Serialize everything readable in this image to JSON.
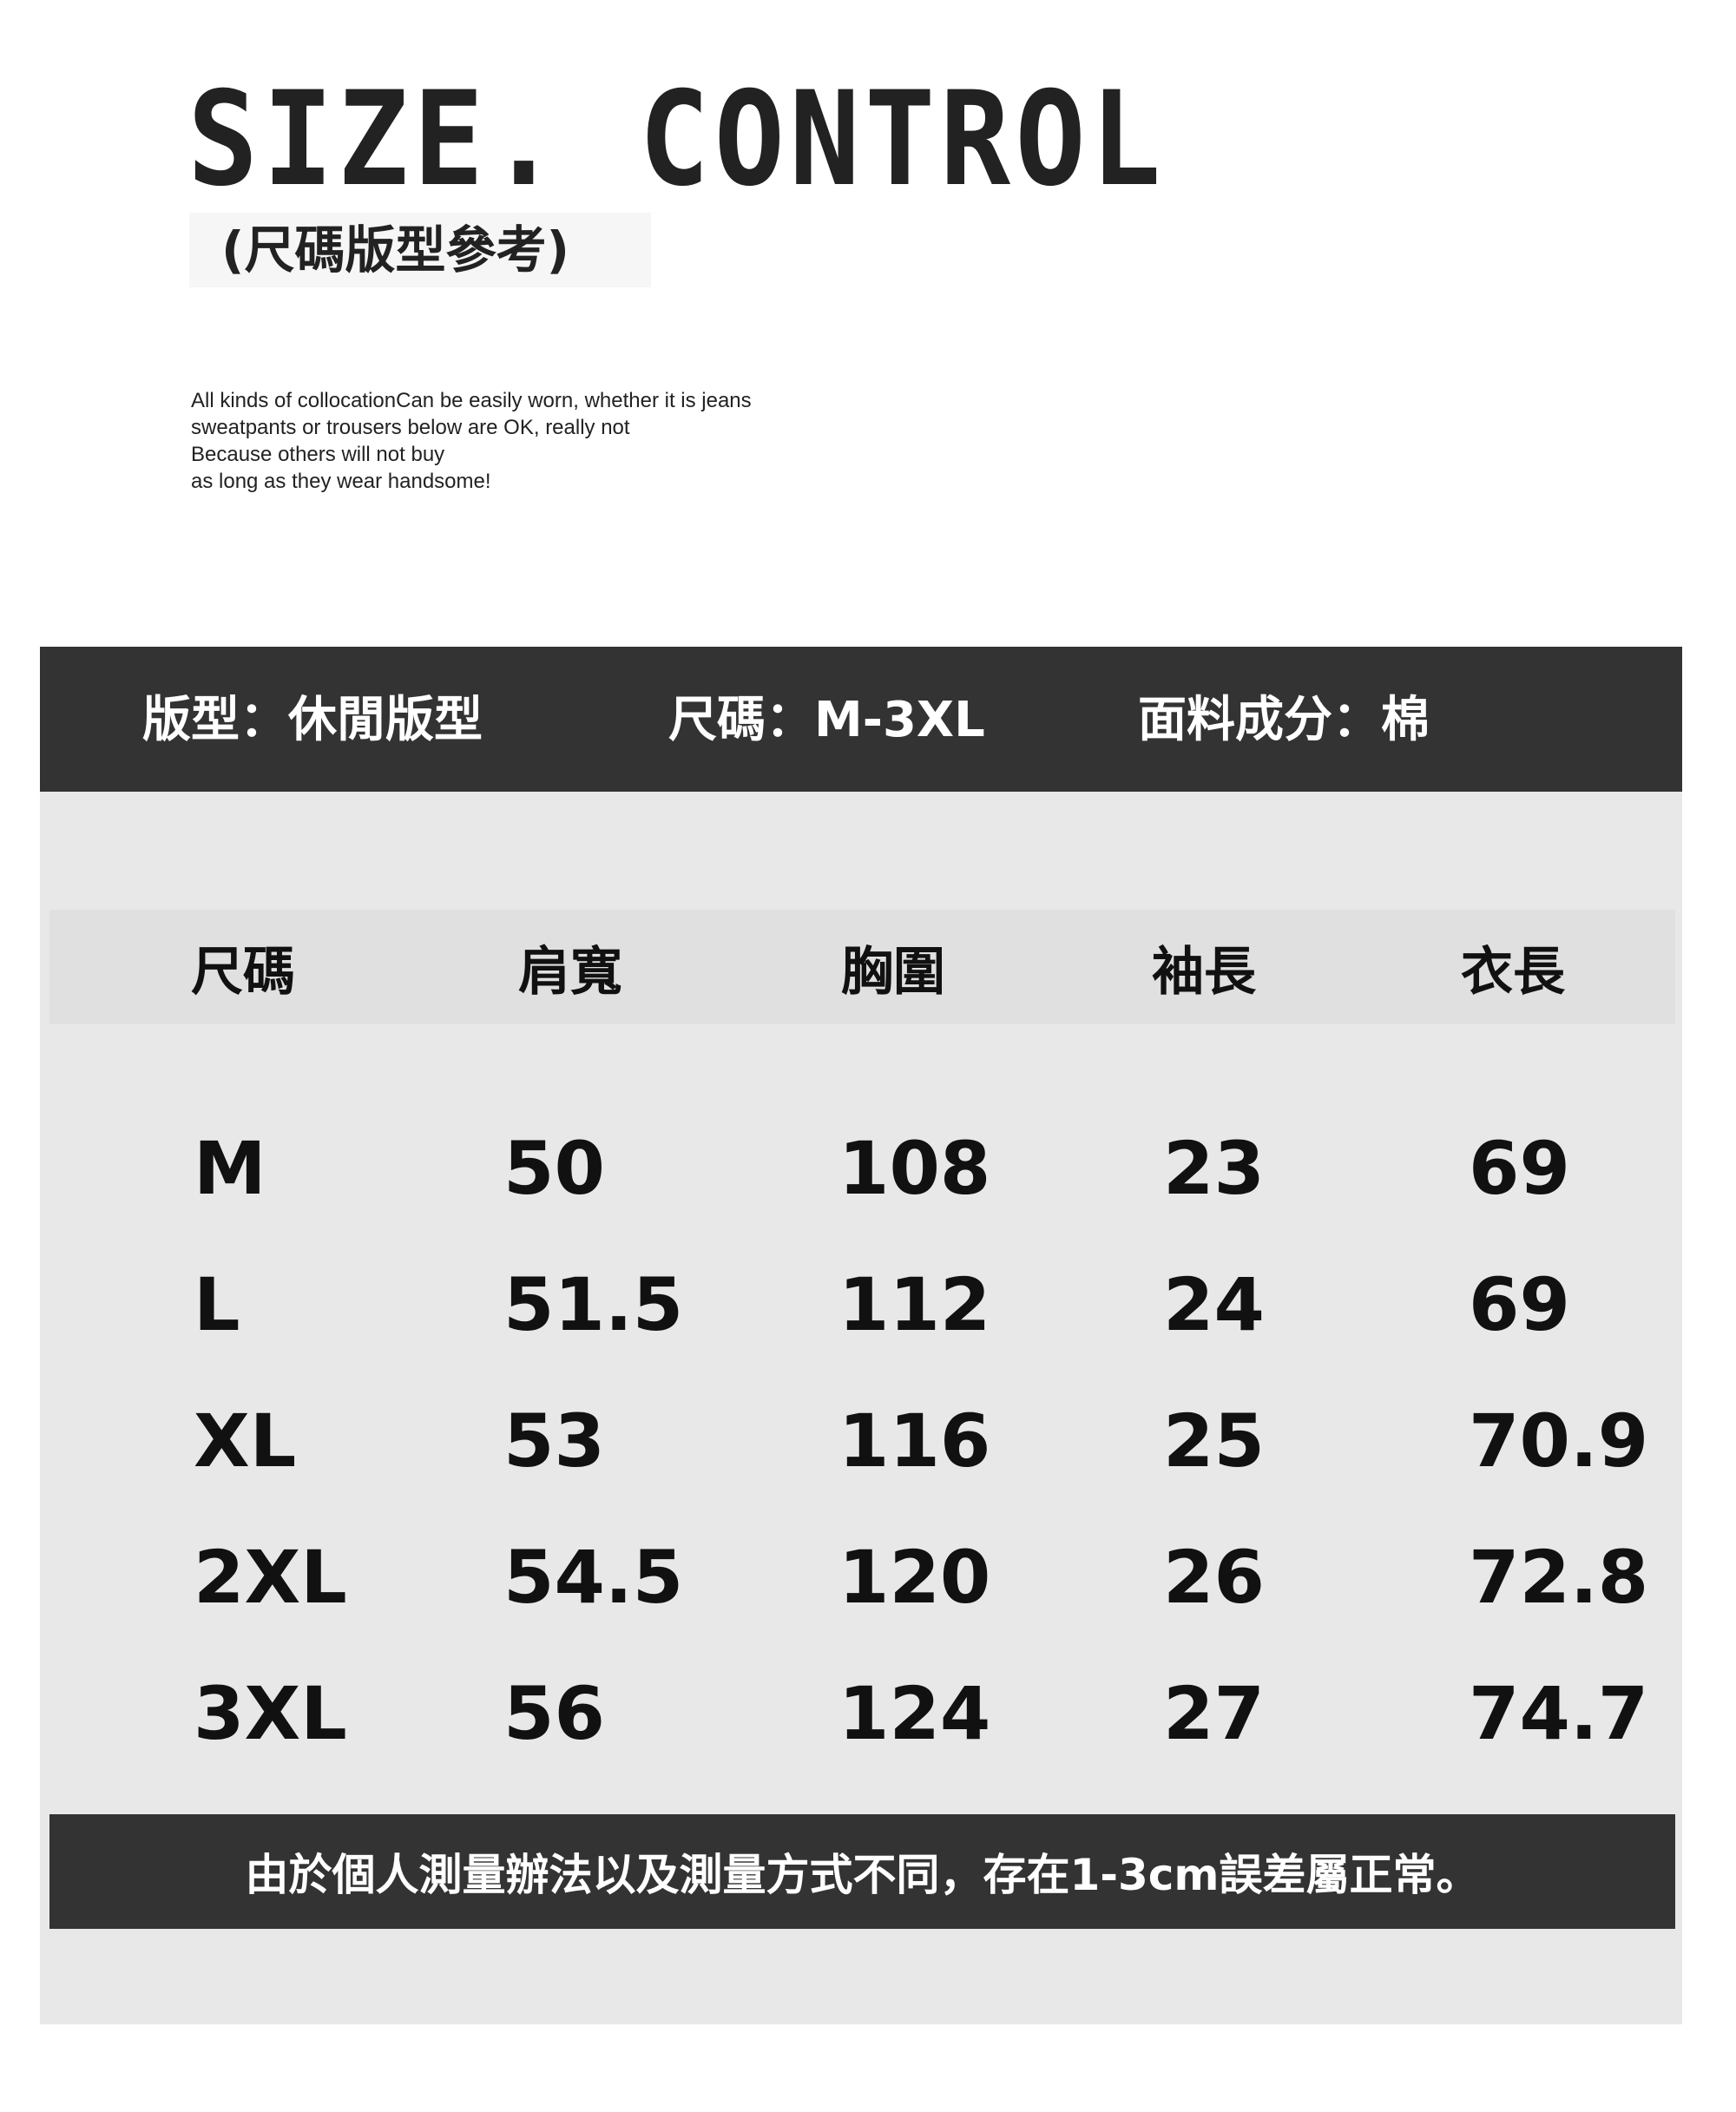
{
  "header": {
    "title": "SIZE. CONTROL",
    "subtitle": "(尺碼版型參考)",
    "description": [
      "All kinds of collocationCan be easily worn, whether it is jeans",
      "sweatpants or trousers below are OK, really not",
      "Because others will not buy",
      "as long as they wear handsome!"
    ]
  },
  "info_band": {
    "fit": "版型：休閒版型",
    "size_range": "尺碼：M-3XL",
    "fabric": "面料成分：棉"
  },
  "size_table": {
    "columns": [
      "尺碼",
      "肩寬",
      "胸圍",
      "袖長",
      "衣長"
    ],
    "rows": [
      [
        "M",
        "50",
        "108",
        "23",
        "69"
      ],
      [
        "L",
        "51.5",
        "112",
        "24",
        "69"
      ],
      [
        "XL",
        "53",
        "116",
        "25",
        "70.9"
      ],
      [
        "2XL",
        "54.5",
        "120",
        "26",
        "72.8"
      ],
      [
        "3XL",
        "56",
        "124",
        "27",
        "74.7"
      ]
    ]
  },
  "footer_note": "由於個人測量辦法以及測量方式不同，存在1-3cm誤差屬正常。",
  "colors": {
    "dark_band": "#333333",
    "panel": "#e8e8e8",
    "header_row": "#e0e0e0"
  }
}
